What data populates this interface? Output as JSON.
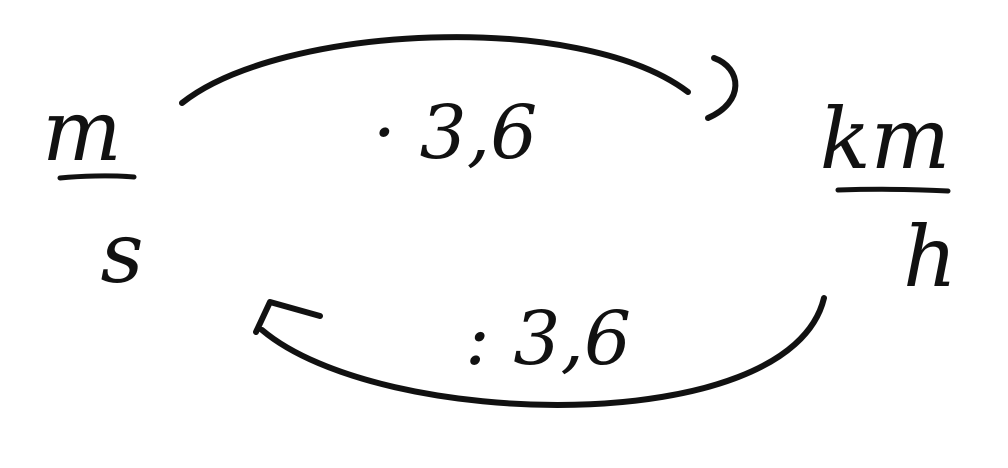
{
  "units": {
    "left": {
      "numerator": "m",
      "denominator": "s"
    },
    "right": {
      "numerator": "km",
      "denominator": "h"
    }
  },
  "conversions": {
    "top": {
      "label": "· 3,6"
    },
    "bottom": {
      "label": ": 3,6"
    }
  },
  "colors": {
    "ink": "#111111",
    "background": "#ffffff"
  }
}
